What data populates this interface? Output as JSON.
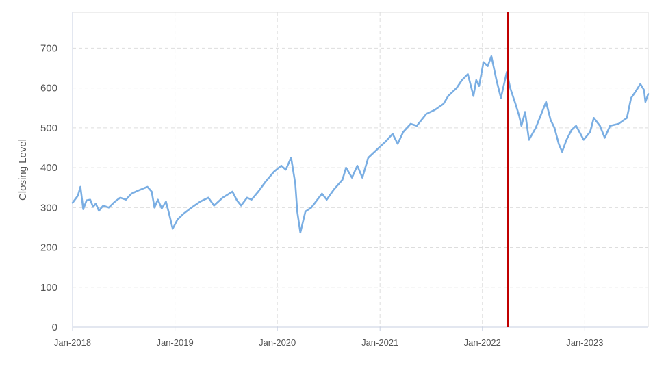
{
  "chart_data": {
    "type": "line",
    "title": "",
    "xlabel": "",
    "ylabel": "Closing Level",
    "ylim": [
      0,
      790
    ],
    "yticks": [
      0,
      100,
      200,
      300,
      400,
      500,
      600,
      700
    ],
    "xlim": [
      "2018-01-01",
      "2023-08-15"
    ],
    "xticks": [
      {
        "date": "2018-01-01",
        "label": "Jan-2018"
      },
      {
        "date": "2019-01-01",
        "label": "Jan-2019"
      },
      {
        "date": "2020-01-01",
        "label": "Jan-2020"
      },
      {
        "date": "2021-01-01",
        "label": "Jan-2021"
      },
      {
        "date": "2022-01-01",
        "label": "Jan-2022"
      },
      {
        "date": "2023-01-01",
        "label": "Jan-2023"
      }
    ],
    "grid": true,
    "colors": {
      "series": "#7aaee3",
      "marker_line": "#c00000",
      "grid": "#dddddd",
      "axis": "#c7cfe0"
    },
    "vertical_marker": {
      "date": "2022-04-01"
    },
    "series": [
      {
        "values": [
          {
            "x": "2018-01-01",
            "y": 312
          },
          {
            "x": "2018-01-20",
            "y": 330
          },
          {
            "x": "2018-01-29",
            "y": 352
          },
          {
            "x": "2018-02-08",
            "y": 296
          },
          {
            "x": "2018-02-20",
            "y": 318
          },
          {
            "x": "2018-03-05",
            "y": 320
          },
          {
            "x": "2018-03-15",
            "y": 302
          },
          {
            "x": "2018-03-25",
            "y": 310
          },
          {
            "x": "2018-04-05",
            "y": 292
          },
          {
            "x": "2018-04-20",
            "y": 305
          },
          {
            "x": "2018-05-10",
            "y": 300
          },
          {
            "x": "2018-06-01",
            "y": 315
          },
          {
            "x": "2018-06-20",
            "y": 325
          },
          {
            "x": "2018-07-10",
            "y": 320
          },
          {
            "x": "2018-07-30",
            "y": 335
          },
          {
            "x": "2018-08-20",
            "y": 342
          },
          {
            "x": "2018-09-10",
            "y": 348
          },
          {
            "x": "2018-09-25",
            "y": 352
          },
          {
            "x": "2018-10-10",
            "y": 340
          },
          {
            "x": "2018-10-20",
            "y": 300
          },
          {
            "x": "2018-11-01",
            "y": 320
          },
          {
            "x": "2018-11-15",
            "y": 298
          },
          {
            "x": "2018-11-30",
            "y": 315
          },
          {
            "x": "2018-12-12",
            "y": 282
          },
          {
            "x": "2018-12-24",
            "y": 247
          },
          {
            "x": "2019-01-10",
            "y": 270
          },
          {
            "x": "2019-02-01",
            "y": 285
          },
          {
            "x": "2019-03-01",
            "y": 300
          },
          {
            "x": "2019-04-01",
            "y": 315
          },
          {
            "x": "2019-04-30",
            "y": 325
          },
          {
            "x": "2019-05-20",
            "y": 305
          },
          {
            "x": "2019-06-20",
            "y": 325
          },
          {
            "x": "2019-07-25",
            "y": 340
          },
          {
            "x": "2019-08-10",
            "y": 318
          },
          {
            "x": "2019-08-25",
            "y": 305
          },
          {
            "x": "2019-09-15",
            "y": 325
          },
          {
            "x": "2019-10-01",
            "y": 320
          },
          {
            "x": "2019-10-25",
            "y": 340
          },
          {
            "x": "2019-11-20",
            "y": 365
          },
          {
            "x": "2019-12-20",
            "y": 390
          },
          {
            "x": "2020-01-15",
            "y": 405
          },
          {
            "x": "2020-01-31",
            "y": 395
          },
          {
            "x": "2020-02-19",
            "y": 425
          },
          {
            "x": "2020-03-05",
            "y": 360
          },
          {
            "x": "2020-03-12",
            "y": 290
          },
          {
            "x": "2020-03-23",
            "y": 237
          },
          {
            "x": "2020-04-10",
            "y": 290
          },
          {
            "x": "2020-05-01",
            "y": 300
          },
          {
            "x": "2020-06-08",
            "y": 335
          },
          {
            "x": "2020-06-25",
            "y": 320
          },
          {
            "x": "2020-07-20",
            "y": 345
          },
          {
            "x": "2020-08-20",
            "y": 370
          },
          {
            "x": "2020-09-02",
            "y": 400
          },
          {
            "x": "2020-09-23",
            "y": 375
          },
          {
            "x": "2020-10-12",
            "y": 405
          },
          {
            "x": "2020-10-30",
            "y": 375
          },
          {
            "x": "2020-11-20",
            "y": 425
          },
          {
            "x": "2020-12-20",
            "y": 445
          },
          {
            "x": "2021-01-20",
            "y": 465
          },
          {
            "x": "2021-02-15",
            "y": 485
          },
          {
            "x": "2021-03-05",
            "y": 460
          },
          {
            "x": "2021-03-25",
            "y": 490
          },
          {
            "x": "2021-04-20",
            "y": 510
          },
          {
            "x": "2021-05-12",
            "y": 505
          },
          {
            "x": "2021-06-15",
            "y": 535
          },
          {
            "x": "2021-07-15",
            "y": 545
          },
          {
            "x": "2021-08-15",
            "y": 560
          },
          {
            "x": "2021-09-01",
            "y": 580
          },
          {
            "x": "2021-10-01",
            "y": 600
          },
          {
            "x": "2021-10-20",
            "y": 620
          },
          {
            "x": "2021-11-10",
            "y": 635
          },
          {
            "x": "2021-11-30",
            "y": 580
          },
          {
            "x": "2021-12-10",
            "y": 620
          },
          {
            "x": "2021-12-20",
            "y": 605
          },
          {
            "x": "2022-01-05",
            "y": 665
          },
          {
            "x": "2022-01-20",
            "y": 655
          },
          {
            "x": "2022-02-02",
            "y": 680
          },
          {
            "x": "2022-02-20",
            "y": 620
          },
          {
            "x": "2022-03-08",
            "y": 575
          },
          {
            "x": "2022-03-29",
            "y": 640
          },
          {
            "x": "2022-04-10",
            "y": 600
          },
          {
            "x": "2022-04-29",
            "y": 560
          },
          {
            "x": "2022-05-12",
            "y": 530
          },
          {
            "x": "2022-05-20",
            "y": 505
          },
          {
            "x": "2022-06-02",
            "y": 540
          },
          {
            "x": "2022-06-16",
            "y": 470
          },
          {
            "x": "2022-07-10",
            "y": 500
          },
          {
            "x": "2022-08-16",
            "y": 565
          },
          {
            "x": "2022-09-01",
            "y": 520
          },
          {
            "x": "2022-09-15",
            "y": 500
          },
          {
            "x": "2022-09-30",
            "y": 460
          },
          {
            "x": "2022-10-12",
            "y": 440
          },
          {
            "x": "2022-10-28",
            "y": 470
          },
          {
            "x": "2022-11-15",
            "y": 495
          },
          {
            "x": "2022-12-01",
            "y": 505
          },
          {
            "x": "2022-12-28",
            "y": 470
          },
          {
            "x": "2023-01-20",
            "y": 490
          },
          {
            "x": "2023-02-02",
            "y": 525
          },
          {
            "x": "2023-02-24",
            "y": 505
          },
          {
            "x": "2023-03-13",
            "y": 475
          },
          {
            "x": "2023-04-01",
            "y": 505
          },
          {
            "x": "2023-05-01",
            "y": 510
          },
          {
            "x": "2023-05-31",
            "y": 525
          },
          {
            "x": "2023-06-15",
            "y": 575
          },
          {
            "x": "2023-06-30",
            "y": 590
          },
          {
            "x": "2023-07-18",
            "y": 610
          },
          {
            "x": "2023-07-31",
            "y": 595
          },
          {
            "x": "2023-08-05",
            "y": 565
          },
          {
            "x": "2023-08-15",
            "y": 585
          }
        ]
      }
    ]
  }
}
